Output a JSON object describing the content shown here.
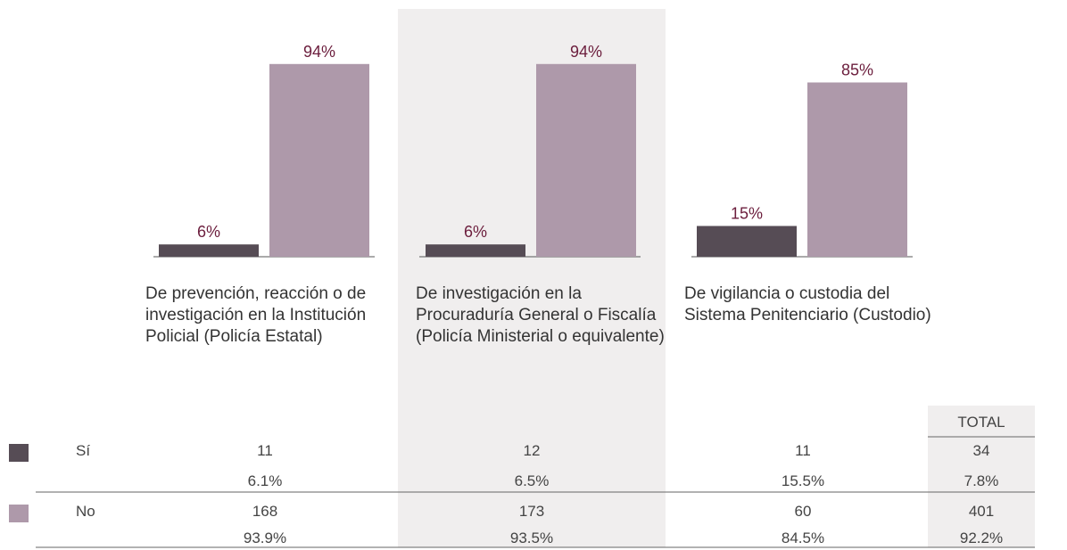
{
  "chart_data": {
    "type": "bar",
    "categories": [
      "De prevención, reacción o de investigación en la Institución Policial (Policía Estatal)",
      "De investigación en la Procuraduría General o Fiscalía (Policía Ministerial o equivalente)",
      "De vigilancia o custodia del Sistema Penitenciario (Custodio)"
    ],
    "series": [
      {
        "name": "Sí",
        "color": "#564c55",
        "values": [
          6,
          6,
          15
        ],
        "value_labels": [
          "6%",
          "6%",
          "15%"
        ]
      },
      {
        "name": "No",
        "color": "#ae99aa",
        "values": [
          94,
          94,
          85
        ],
        "value_labels": [
          "94%",
          "94%",
          "85%"
        ]
      }
    ],
    "ylim": [
      0,
      100
    ]
  },
  "table": {
    "total_header": "TOTAL",
    "rows": [
      {
        "label": "Sí",
        "counts": [
          11,
          12,
          11
        ],
        "percents": [
          "6.1%",
          "6.5%",
          "15.5%"
        ],
        "total": 34,
        "total_percent": "7.8%"
      },
      {
        "label": "No",
        "counts": [
          168,
          173,
          60
        ],
        "percents": [
          "93.9%",
          "93.5%",
          "84.5%"
        ],
        "total": 401,
        "total_percent": "92.2%"
      }
    ]
  }
}
